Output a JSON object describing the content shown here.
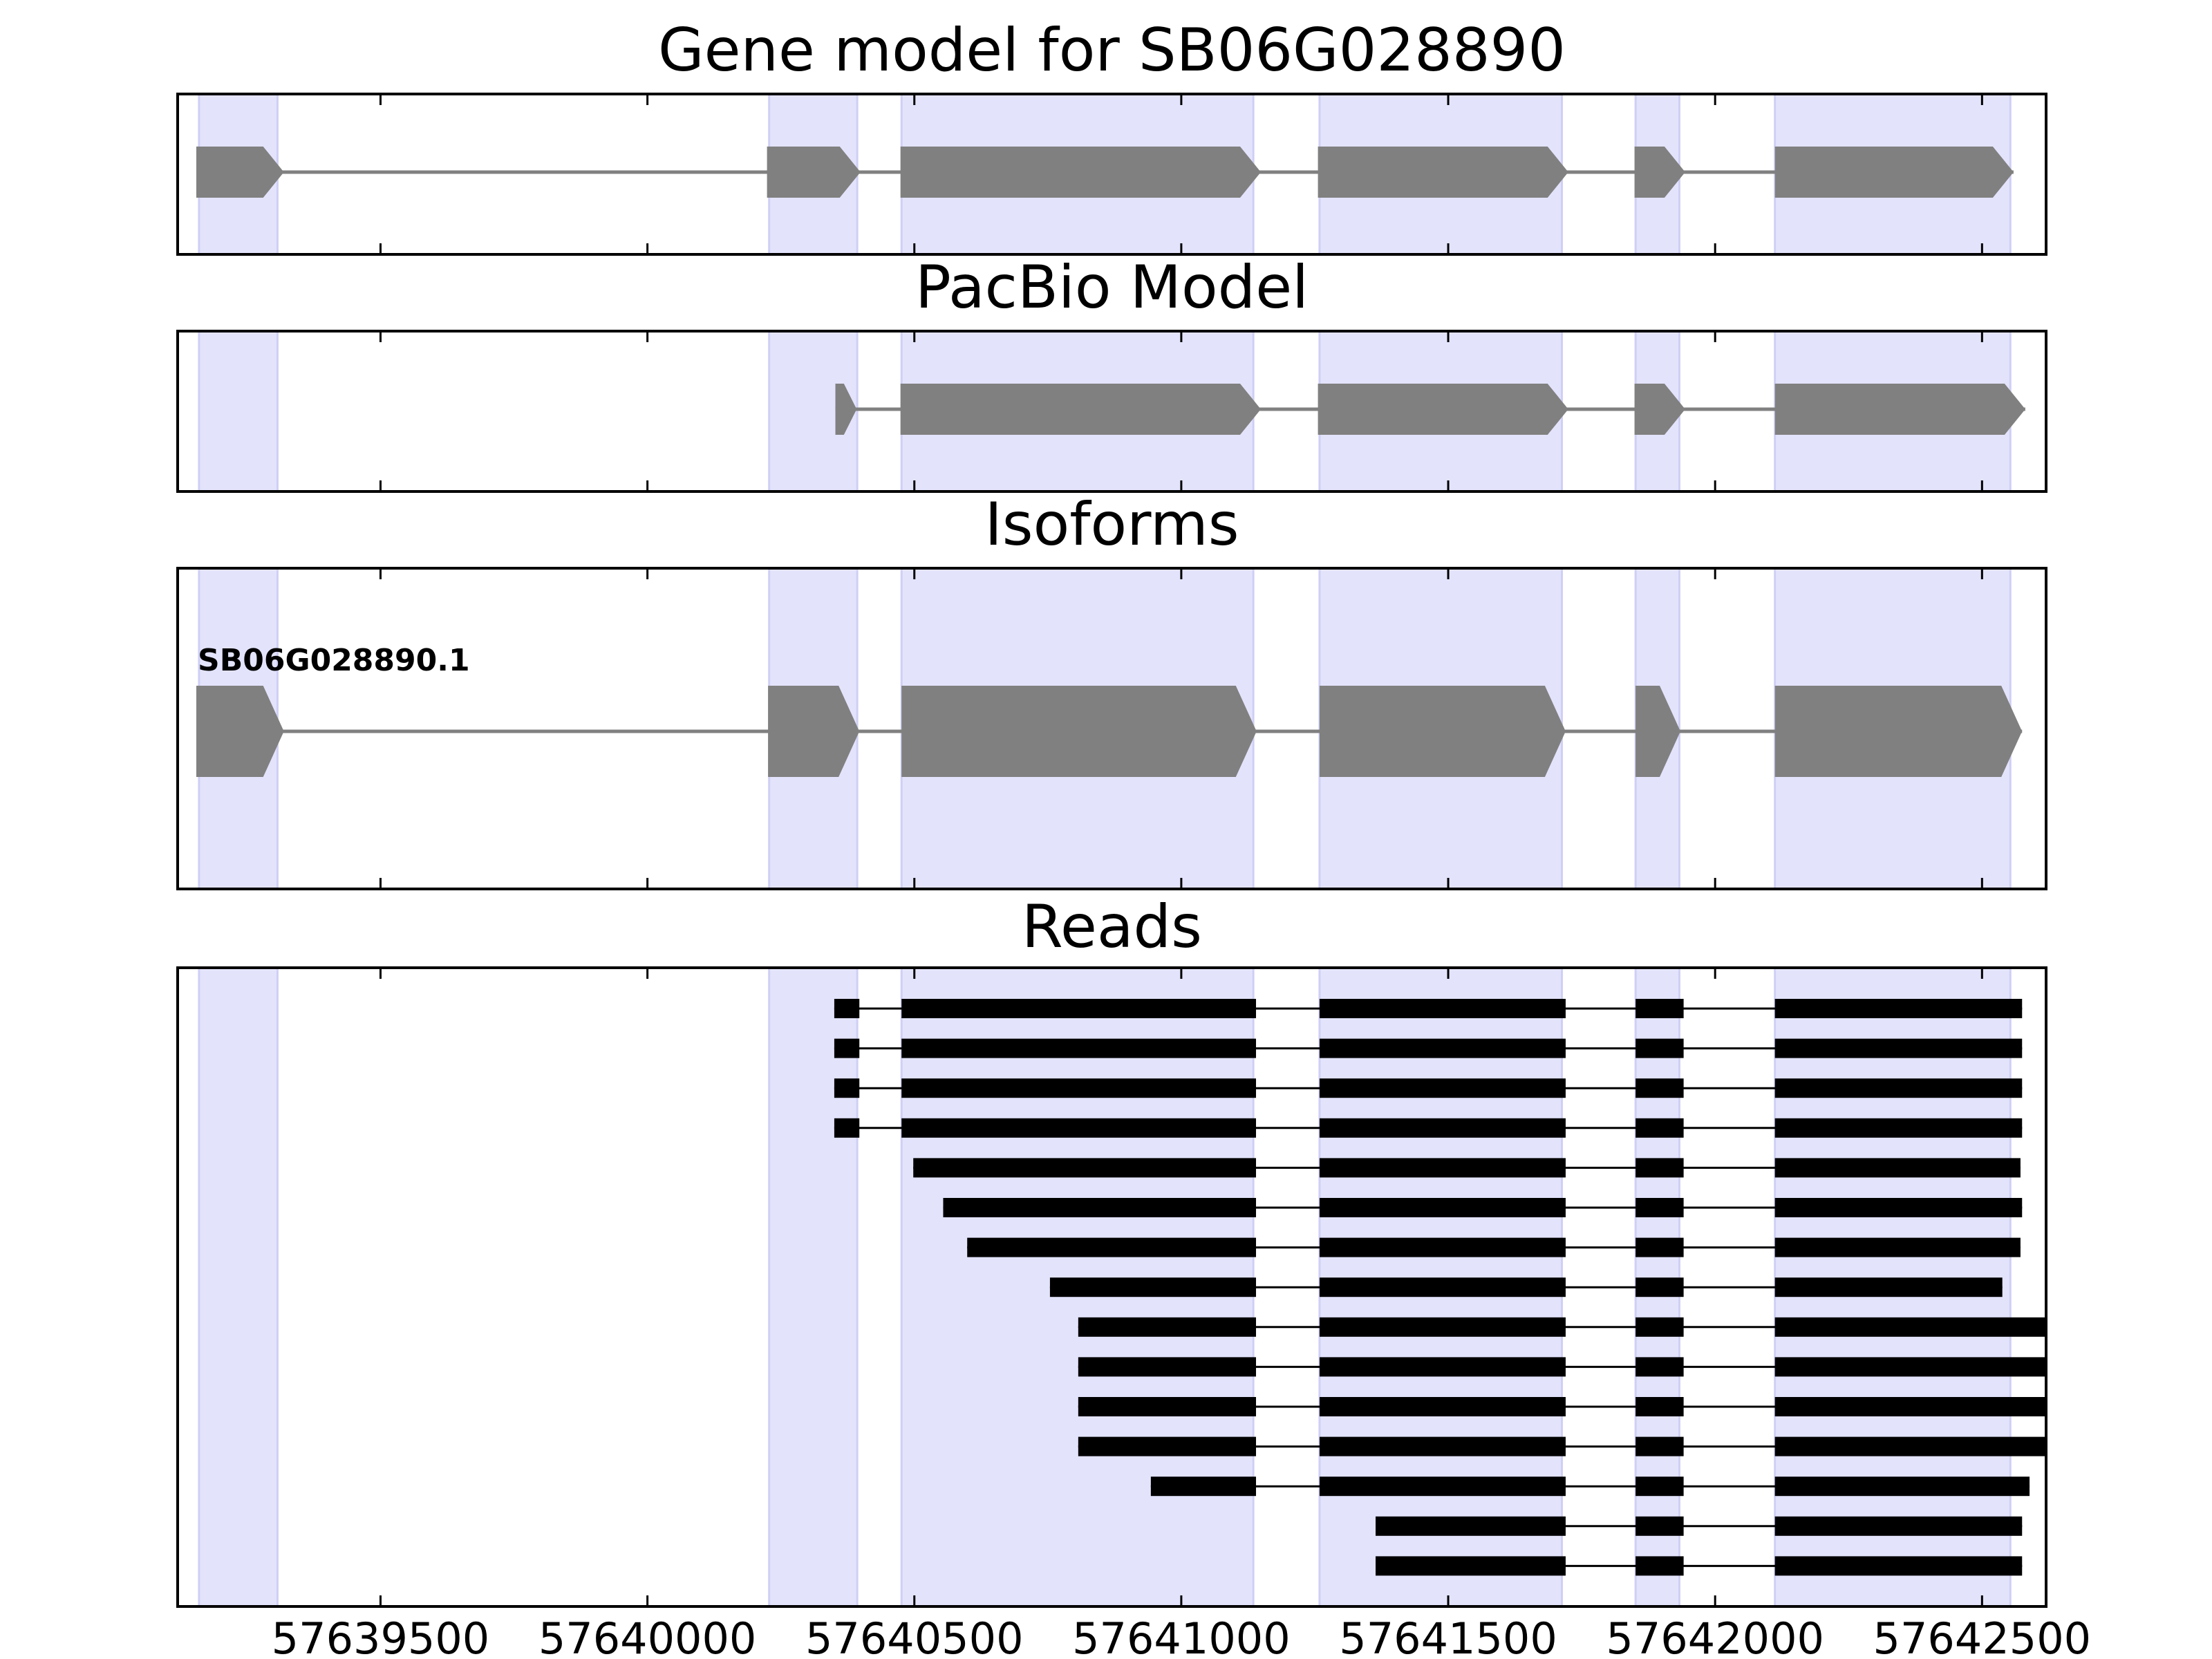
{
  "chart_data": {
    "type": "gene_structure",
    "x_range": [
      57639120,
      57642620
    ],
    "x_ticks": [
      57639500,
      57640000,
      57640500,
      57641000,
      57641500,
      57642000,
      57642500
    ],
    "x_tick_labels": [
      "57639500",
      "57640000",
      "57640500",
      "57641000",
      "57641500",
      "57642000",
      "57642500"
    ],
    "exon_highlights": [
      [
        57639160,
        57639307
      ],
      [
        57640228,
        57640393
      ],
      [
        57640476,
        57641135
      ],
      [
        57641259,
        57641713
      ],
      [
        57641851,
        57641933
      ],
      [
        57642112,
        57642553
      ]
    ],
    "panels": [
      {
        "id": "gene-model",
        "title": "Gene model for SB06G028890",
        "tracks": [
          {
            "label": "",
            "exons": [
              [
                57639155,
                57639319
              ],
              [
                57640224,
                57640399
              ],
              [
                57640474,
                57641149
              ],
              [
                57641256,
                57641725
              ],
              [
                57641849,
                57641944
              ],
              [
                57642112,
                57642559
              ]
            ]
          }
        ]
      },
      {
        "id": "pacbio-model",
        "title": "PacBio Model",
        "tracks": [
          {
            "label": "",
            "exons": [
              [
                57640352,
                57640392
              ],
              [
                57640474,
                57641149
              ],
              [
                57641256,
                57641725
              ],
              [
                57641849,
                57641944
              ],
              [
                57642112,
                57642581
              ]
            ]
          }
        ]
      },
      {
        "id": "isoforms",
        "title": "Isoforms",
        "tracks": [
          {
            "label": "SB06G028890.1",
            "exons": [
              [
                57639155,
                57639319
              ],
              [
                57640226,
                57640397
              ],
              [
                57640476,
                57641141
              ],
              [
                57641259,
                57641720
              ],
              [
                57641851,
                57641935
              ],
              [
                57642112,
                57642575
              ]
            ]
          }
        ]
      },
      {
        "id": "reads",
        "title": "Reads",
        "tracks": [
          {
            "label": "",
            "exons": [
              [
                57640350,
                57640397
              ],
              [
                57640476,
                57641140
              ],
              [
                57641259,
                57641720
              ],
              [
                57641851,
                57641941
              ],
              [
                57642112,
                57642575
              ]
            ]
          },
          {
            "label": "",
            "exons": [
              [
                57640350,
                57640397
              ],
              [
                57640476,
                57641140
              ],
              [
                57641259,
                57641720
              ],
              [
                57641851,
                57641941
              ],
              [
                57642112,
                57642575
              ]
            ]
          },
          {
            "label": "",
            "exons": [
              [
                57640350,
                57640397
              ],
              [
                57640476,
                57641140
              ],
              [
                57641259,
                57641720
              ],
              [
                57641851,
                57641941
              ],
              [
                57642112,
                57642575
              ]
            ]
          },
          {
            "label": "",
            "exons": [
              [
                57640350,
                57640397
              ],
              [
                57640476,
                57641140
              ],
              [
                57641259,
                57641720
              ],
              [
                57641851,
                57641941
              ],
              [
                57642112,
                57642575
              ]
            ]
          },
          {
            "label": "",
            "exons": [
              [
                57640498,
                57641140
              ],
              [
                57641259,
                57641720
              ],
              [
                57641851,
                57641941
              ],
              [
                57642112,
                57642572
              ]
            ]
          },
          {
            "label": "",
            "exons": [
              [
                57640554,
                57641140
              ],
              [
                57641259,
                57641720
              ],
              [
                57641851,
                57641941
              ],
              [
                57642112,
                57642575
              ]
            ]
          },
          {
            "label": "",
            "exons": [
              [
                57640599,
                57641140
              ],
              [
                57641259,
                57641720
              ],
              [
                57641851,
                57641941
              ],
              [
                57642112,
                57642572
              ]
            ]
          },
          {
            "label": "",
            "exons": [
              [
                57640754,
                57641140
              ],
              [
                57641259,
                57641720
              ],
              [
                57641851,
                57641941
              ],
              [
                57642112,
                57642538
              ]
            ]
          },
          {
            "label": "",
            "exons": [
              [
                57640807,
                57641140
              ],
              [
                57641259,
                57641720
              ],
              [
                57641851,
                57641941
              ],
              [
                57642112,
                57642620
              ]
            ]
          },
          {
            "label": "",
            "exons": [
              [
                57640807,
                57641140
              ],
              [
                57641259,
                57641720
              ],
              [
                57641851,
                57641941
              ],
              [
                57642112,
                57642620
              ]
            ]
          },
          {
            "label": "",
            "exons": [
              [
                57640807,
                57641140
              ],
              [
                57641259,
                57641720
              ],
              [
                57641851,
                57641941
              ],
              [
                57642112,
                57642620
              ]
            ]
          },
          {
            "label": "",
            "exons": [
              [
                57640807,
                57641140
              ],
              [
                57641259,
                57641720
              ],
              [
                57641851,
                57641941
              ],
              [
                57642112,
                57642620
              ]
            ]
          },
          {
            "label": "",
            "exons": [
              [
                57640943,
                57641140
              ],
              [
                57641259,
                57641720
              ],
              [
                57641851,
                57641941
              ],
              [
                57642112,
                57642589
              ]
            ]
          },
          {
            "label": "",
            "exons": [
              [
                57641364,
                57641720
              ],
              [
                57641851,
                57641941
              ],
              [
                57642112,
                57642575
              ]
            ]
          },
          {
            "label": "",
            "exons": [
              [
                57641364,
                57641720
              ],
              [
                57641851,
                57641941
              ],
              [
                57642112,
                57642575
              ]
            ]
          }
        ]
      }
    ],
    "colors": {
      "exon_highlight": "#e3e3fc",
      "exon_highlight_edge": "#cfcff5",
      "model_exon": "#808080",
      "model_intron": "#808080",
      "read": "#000000"
    },
    "grid": false
  }
}
